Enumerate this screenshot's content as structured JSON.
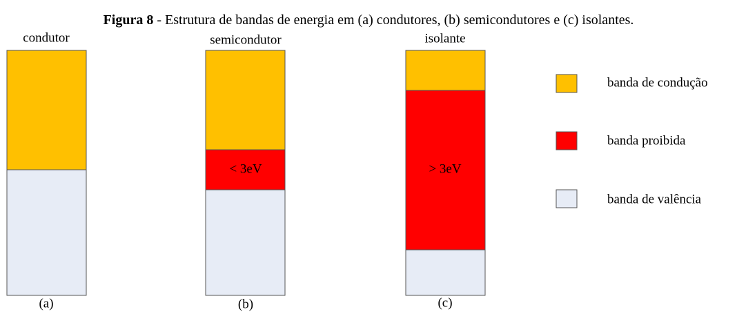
{
  "title": {
    "label": "Figura 8",
    "text": " - Estrutura de bandas de energia em (a) condutores, (b) semicondutores e (c) isolantes."
  },
  "columns": [
    {
      "label": "condutor",
      "caption": "(a)"
    },
    {
      "label": "semicondutor",
      "caption": "(b)",
      "gap_label": "< 3eV"
    },
    {
      "label": "isolante",
      "caption": "(c)",
      "gap_label": "> 3eV"
    }
  ],
  "legend": [
    "banda de condução",
    "banda proibida",
    "banda de valência"
  ]
}
